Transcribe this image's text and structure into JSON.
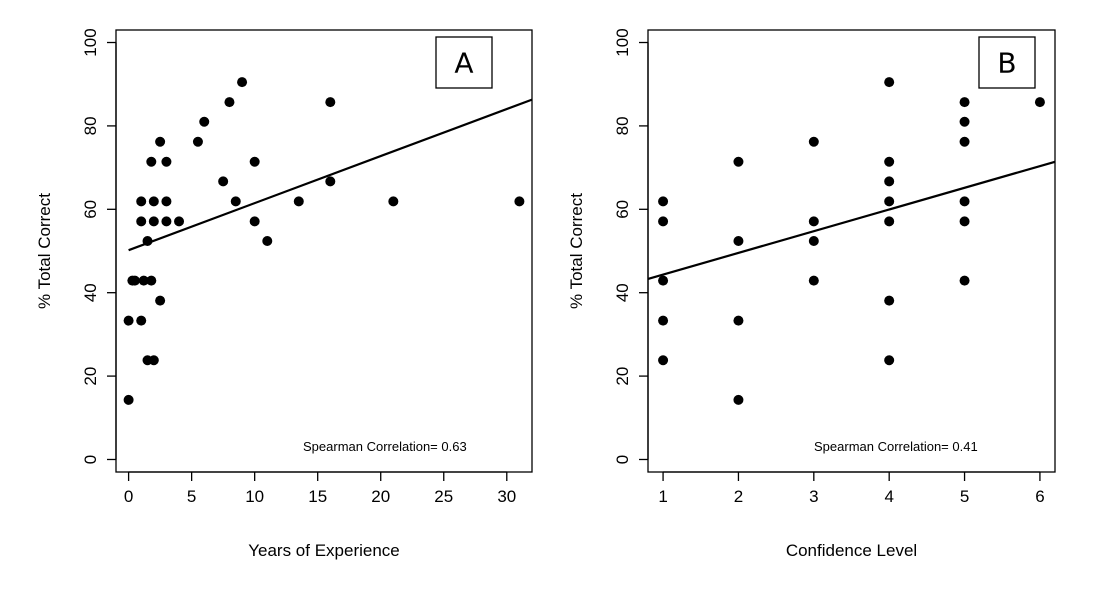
{
  "chart_data": [
    {
      "type": "scatter",
      "panel_label": "A",
      "xlabel": "Years of Experience",
      "ylabel": "% Total Correct",
      "annotation": "Spearman Correlation= 0.63",
      "xlim": [
        -1,
        32
      ],
      "ylim": [
        -3,
        103
      ],
      "xticks": [
        0,
        5,
        10,
        15,
        20,
        25,
        30
      ],
      "yticks": [
        0,
        20,
        40,
        60,
        80,
        100
      ],
      "grid": false,
      "points": [
        {
          "x": 0,
          "y": 33.3
        },
        {
          "x": 0,
          "y": 14.3
        },
        {
          "x": 0.3,
          "y": 42.9
        },
        {
          "x": 0.5,
          "y": 42.9
        },
        {
          "x": 1,
          "y": 61.9
        },
        {
          "x": 1,
          "y": 57.1
        },
        {
          "x": 1,
          "y": 33.3
        },
        {
          "x": 1.2,
          "y": 42.9
        },
        {
          "x": 1.5,
          "y": 52.4
        },
        {
          "x": 1.5,
          "y": 23.8
        },
        {
          "x": 1.8,
          "y": 71.4
        },
        {
          "x": 1.8,
          "y": 42.9
        },
        {
          "x": 2,
          "y": 61.9
        },
        {
          "x": 2,
          "y": 57.1
        },
        {
          "x": 2,
          "y": 23.8
        },
        {
          "x": 2.5,
          "y": 76.2
        },
        {
          "x": 2.5,
          "y": 38.1
        },
        {
          "x": 3,
          "y": 71.4
        },
        {
          "x": 3,
          "y": 61.9
        },
        {
          "x": 3,
          "y": 57.1
        },
        {
          "x": 4,
          "y": 57.1
        },
        {
          "x": 5.5,
          "y": 76.2
        },
        {
          "x": 6,
          "y": 81.0
        },
        {
          "x": 7.5,
          "y": 66.7
        },
        {
          "x": 8,
          "y": 85.7
        },
        {
          "x": 8.5,
          "y": 61.9
        },
        {
          "x": 9,
          "y": 90.5
        },
        {
          "x": 10,
          "y": 71.4
        },
        {
          "x": 10,
          "y": 57.1
        },
        {
          "x": 11,
          "y": 52.4
        },
        {
          "x": 13.5,
          "y": 61.9
        },
        {
          "x": 16,
          "y": 85.7
        },
        {
          "x": 16,
          "y": 66.7
        },
        {
          "x": 21,
          "y": 61.9
        },
        {
          "x": 31,
          "y": 61.9
        }
      ],
      "fit_line": [
        {
          "x": 0,
          "y": 50.2
        },
        {
          "x": 32,
          "y": 86.3
        }
      ]
    },
    {
      "type": "scatter",
      "panel_label": "B",
      "xlabel": "Confidence Level",
      "ylabel": "% Total Correct",
      "annotation": "Spearman Correlation= 0.41",
      "xlim": [
        0.8,
        6.2
      ],
      "ylim": [
        -3,
        103
      ],
      "xticks": [
        1,
        2,
        3,
        4,
        5,
        6
      ],
      "yticks": [
        0,
        20,
        40,
        60,
        80,
        100
      ],
      "grid": false,
      "points": [
        {
          "x": 1,
          "y": 61.9
        },
        {
          "x": 1,
          "y": 57.1
        },
        {
          "x": 1,
          "y": 42.9
        },
        {
          "x": 1,
          "y": 33.3
        },
        {
          "x": 1,
          "y": 23.8
        },
        {
          "x": 2,
          "y": 71.4
        },
        {
          "x": 2,
          "y": 52.4
        },
        {
          "x": 2,
          "y": 33.3
        },
        {
          "x": 2,
          "y": 14.3
        },
        {
          "x": 3,
          "y": 76.2
        },
        {
          "x": 3,
          "y": 57.1
        },
        {
          "x": 3,
          "y": 52.4
        },
        {
          "x": 3,
          "y": 42.9
        },
        {
          "x": 4,
          "y": 90.5
        },
        {
          "x": 4,
          "y": 71.4
        },
        {
          "x": 4,
          "y": 66.7
        },
        {
          "x": 4,
          "y": 61.9
        },
        {
          "x": 4,
          "y": 57.1
        },
        {
          "x": 4,
          "y": 38.1
        },
        {
          "x": 4,
          "y": 23.8
        },
        {
          "x": 5,
          "y": 85.7
        },
        {
          "x": 5,
          "y": 81.0
        },
        {
          "x": 5,
          "y": 76.2
        },
        {
          "x": 5,
          "y": 61.9
        },
        {
          "x": 5,
          "y": 57.1
        },
        {
          "x": 5,
          "y": 42.9
        },
        {
          "x": 6,
          "y": 85.7
        }
      ],
      "fit_line": [
        {
          "x": 0.8,
          "y": 43.3
        },
        {
          "x": 6.2,
          "y": 71.4
        }
      ]
    }
  ]
}
